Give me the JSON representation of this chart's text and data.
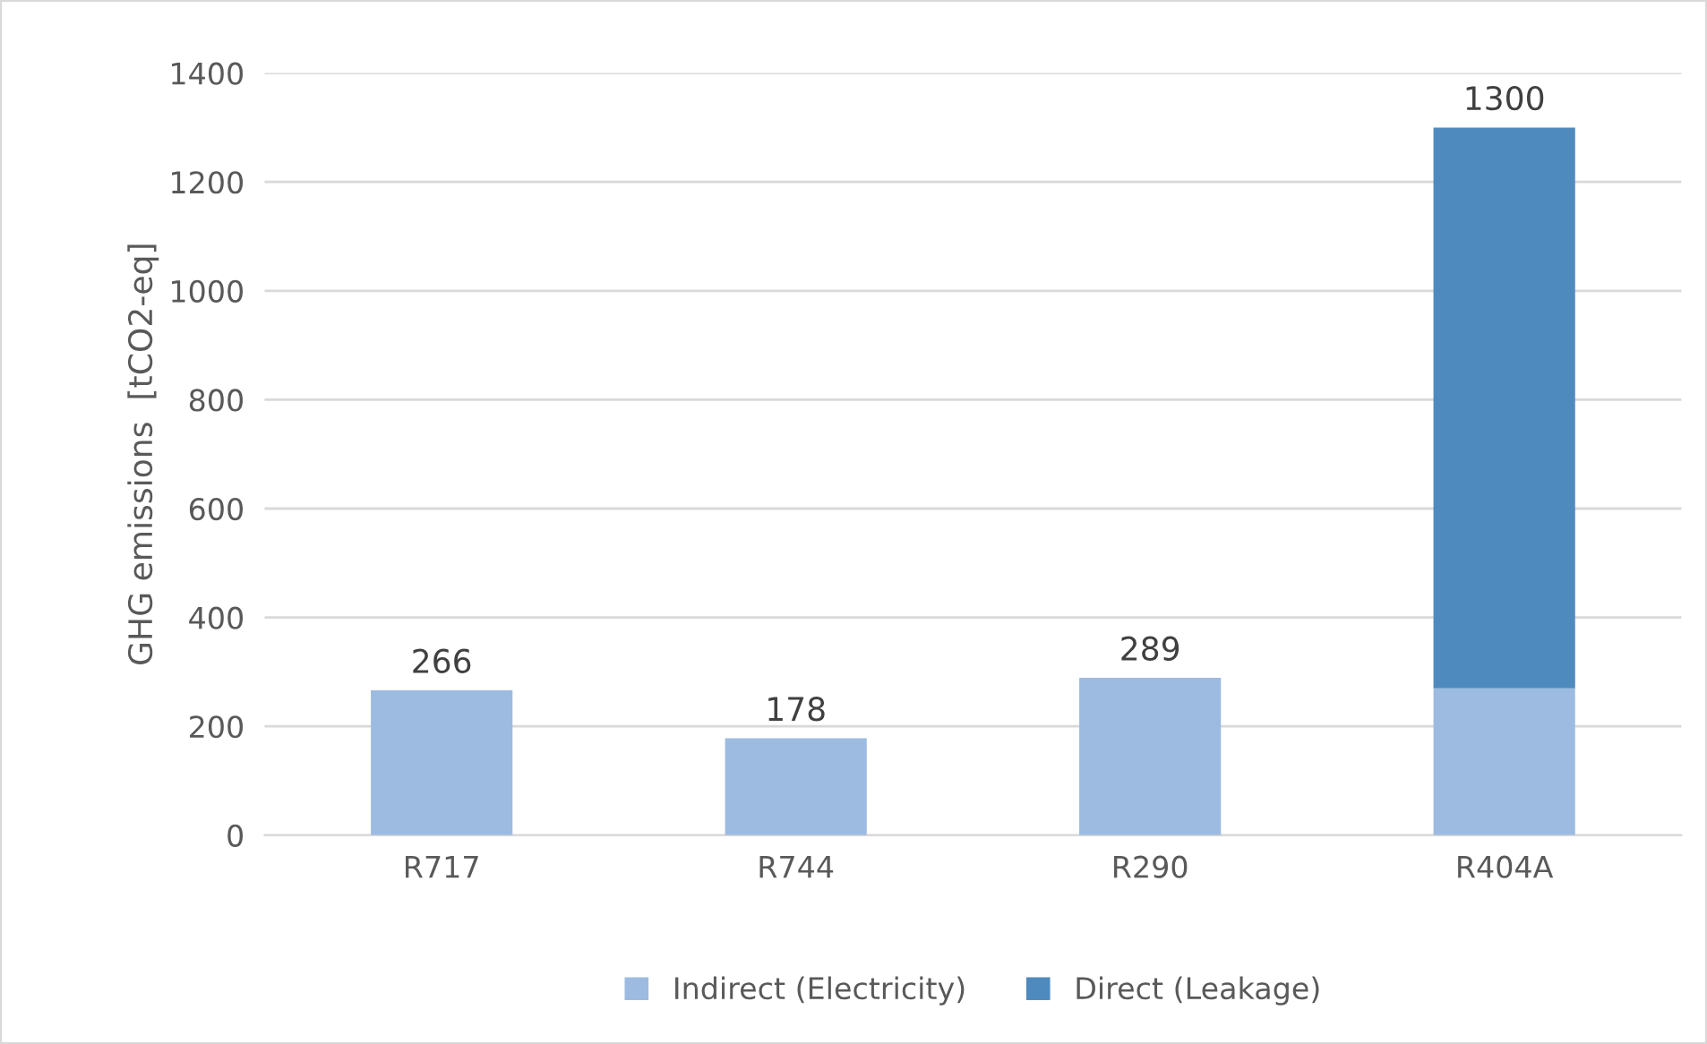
{
  "chart_data": {
    "type": "bar",
    "stacked": true,
    "ylabel": "GHG emissions  [tCO2-eq]",
    "categories": [
      "R717",
      "R744",
      "R290",
      "R404A"
    ],
    "series": [
      {
        "name": "Indirect (Electricity)",
        "color": "#9dbbe1",
        "values": [
          266,
          178,
          289,
          270
        ]
      },
      {
        "name": "Direct (Leakage)",
        "color": "#4f8abf",
        "values": [
          null,
          null,
          null,
          1030
        ]
      }
    ],
    "totals": [
      "266",
      "178",
      "289",
      "1300"
    ],
    "ylim": [
      0,
      1400
    ],
    "yticks": [
      0,
      200,
      400,
      600,
      800,
      1000,
      1200,
      1400
    ],
    "grid": "y",
    "legend": "bottom"
  }
}
